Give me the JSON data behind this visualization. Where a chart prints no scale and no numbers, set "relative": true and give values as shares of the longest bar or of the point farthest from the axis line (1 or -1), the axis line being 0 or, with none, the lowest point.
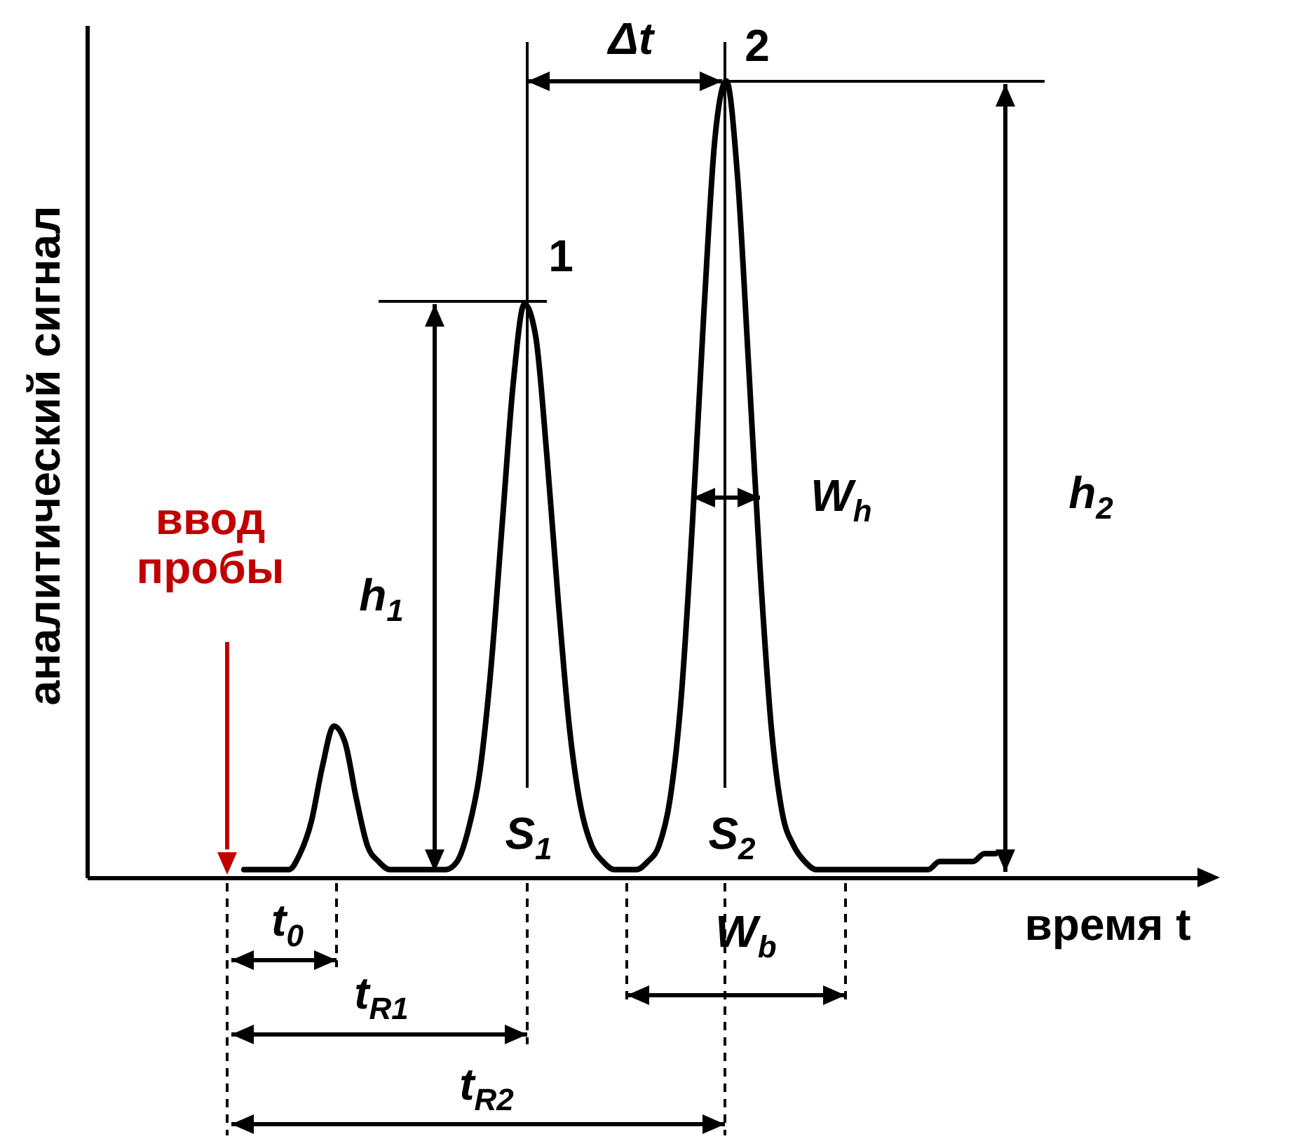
{
  "chart_data": {
    "type": "line",
    "relative": true,
    "tick_labels": false,
    "xlabel": "время t",
    "ylabel": "аналитический сигнал",
    "categories": [
      null,
      null,
      null,
      null,
      null,
      null,
      null,
      null,
      null,
      null,
      null,
      null,
      null,
      null,
      null,
      null,
      null,
      null,
      null,
      null,
      null,
      null,
      null,
      null,
      null,
      null,
      null,
      null,
      null,
      null,
      null,
      null,
      null,
      null,
      null,
      null,
      null,
      null,
      null,
      null,
      null,
      null,
      null,
      null,
      null,
      null,
      null,
      null,
      null,
      null,
      null,
      null,
      null,
      null,
      null,
      null,
      null,
      null,
      null,
      null,
      null,
      null,
      null,
      null,
      null,
      null,
      null,
      null,
      null,
      null,
      null,
      null,
      null,
      null,
      null,
      null,
      null,
      null,
      null,
      null,
      null,
      null,
      null,
      null,
      null,
      null,
      null,
      null,
      null,
      null,
      null,
      null,
      null,
      null,
      null,
      null,
      null,
      null,
      null,
      null,
      null
    ],
    "series": [
      {
        "color": "#000000",
        "values": [
          null,
          null,
          null,
          null,
          null,
          null,
          null,
          null,
          null,
          null,
          null,
          null,
          null,
          null,
          0.01,
          0.01,
          0.01,
          0.01,
          0.01,
          0.03,
          0.07,
          0.14,
          0.19,
          0.17,
          0.1,
          0.04,
          0.02,
          0.01,
          0.01,
          0.01,
          0.01,
          0.01,
          0.01,
          0.02,
          0.06,
          0.13,
          0.26,
          0.44,
          0.62,
          0.72,
          0.68,
          0.53,
          0.35,
          0.19,
          0.09,
          0.04,
          0.02,
          0.01,
          0.01,
          0.01,
          0.02,
          0.04,
          0.1,
          0.23,
          0.45,
          0.71,
          0.93,
          1,
          0.88,
          0.64,
          0.39,
          0.19,
          0.08,
          0.04,
          0.02,
          0.01,
          0.01,
          0.01,
          0.01,
          0.01,
          0.01,
          0.01,
          0.01,
          0.01,
          0.01,
          0.01,
          0.02,
          0.02,
          0.02,
          0.02,
          0.03,
          0.03,
          null,
          null,
          null,
          null,
          null,
          null,
          null,
          null,
          null,
          null,
          null,
          null,
          null,
          null,
          null,
          null,
          null,
          null,
          null
        ]
      }
    ],
    "annotations": [
      "1",
      "2",
      "Δt",
      "h$_{1}$",
      "h$_{2}$",
      "S$_{1}$",
      "S$_{2}$",
      "W$_{h}$",
      "W$_{b}$",
      "t$_{0}$",
      "t$_{R1}$",
      "t$_{R2}$",
      "ввод пробы"
    ]
  }
}
